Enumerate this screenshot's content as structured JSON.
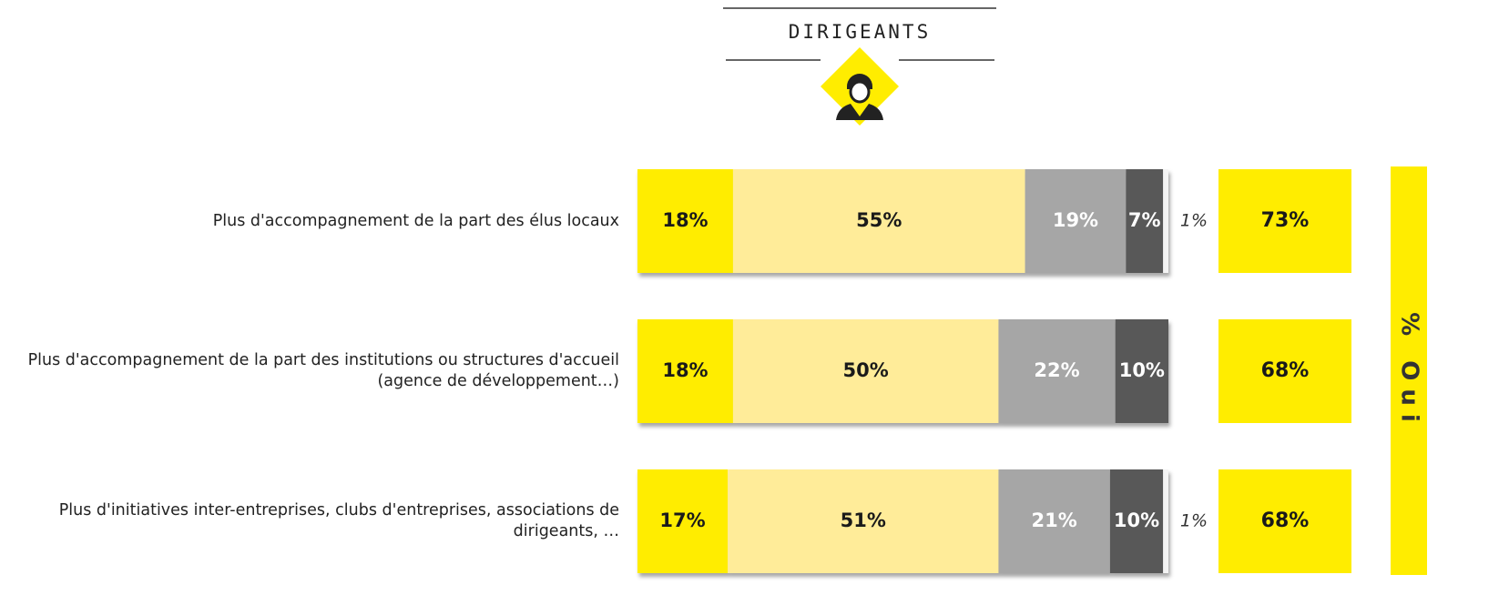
{
  "chart_data": {
    "type": "stacked-bar",
    "title": "DIRIGEANTS",
    "categories": [
      "Plus d'accompagnement de la part des élus locaux",
      "Plus d'accompagnement de la part des institutions ou structures d'accueil (agence de développement…)",
      "Plus d'initiatives inter-entreprises, clubs d'entreprises, associations de dirigeants, …"
    ],
    "series": [
      {
        "color": "#ffed00",
        "label_color": "#1a1a1a",
        "values": [
          18,
          18,
          17
        ],
        "value_labels": [
          "18%",
          "18%",
          "17%"
        ]
      },
      {
        "color": "#ffec99",
        "label_color": "#1a1a1a",
        "values": [
          55,
          50,
          51
        ],
        "value_labels": [
          "55%",
          "50%",
          "51%"
        ]
      },
      {
        "color": "#a6a6a6",
        "label_color": "#ffffff",
        "values": [
          19,
          22,
          21
        ],
        "value_labels": [
          "19%",
          "22%",
          "21%"
        ]
      },
      {
        "color": "#595959",
        "label_color": "#ffffff",
        "values": [
          7,
          10,
          10
        ],
        "value_labels": [
          "7%",
          "10%",
          "10%"
        ]
      },
      {
        "color": "#f4f4f4",
        "label_color": "#333333",
        "values": [
          1,
          null,
          1
        ],
        "value_labels": [
          "1%",
          null,
          "1%"
        ]
      }
    ],
    "totals": {
      "label": "% Oui",
      "color": "#ffed00",
      "values": [
        73,
        68,
        68
      ],
      "value_labels": [
        "73%",
        "68%",
        "68%"
      ]
    }
  }
}
